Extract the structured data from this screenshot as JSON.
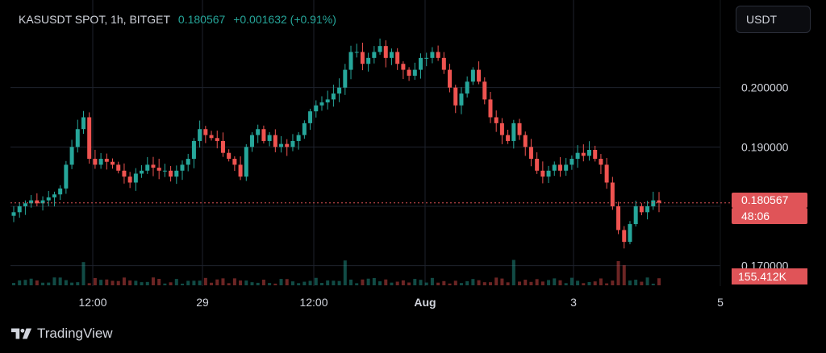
{
  "header": {
    "symbol": "KASUSDT SPOT, 1h, BITGET",
    "last_price": "0.180567",
    "change": "+0.001632 (+0.91%)"
  },
  "currency_button": "USDT",
  "price_tag": {
    "price": "0.180567",
    "countdown": "48:06"
  },
  "volume_tag": "155.412K",
  "footer": {
    "brand": "TradingView"
  },
  "colors": {
    "up": "#26a69a",
    "down": "#ef5350",
    "grid": "#1e222d",
    "last_line": "#e05458"
  },
  "chart_data": {
    "type": "candlestick",
    "y_axis": {
      "ticks": [
        0.17,
        0.18,
        0.19,
        0.2
      ],
      "tick_labels": [
        "0.170000",
        "0.180000",
        "0.190000",
        "0.200000"
      ],
      "range": [
        0.1675,
        0.2115
      ]
    },
    "x_axis": {
      "tick_labels": [
        "12:00",
        "29",
        "12:00",
        "Aug",
        "3",
        "5"
      ]
    },
    "last_price": 0.180567,
    "grid": true,
    "close_series": [
      0.179,
      0.18,
      0.1805,
      0.181,
      0.1805,
      0.181,
      0.1815,
      0.182,
      0.183,
      0.187,
      0.19,
      0.193,
      0.195,
      0.188,
      0.187,
      0.188,
      0.1875,
      0.187,
      0.186,
      0.185,
      0.184,
      0.1855,
      0.186,
      0.187,
      0.1865,
      0.186,
      0.186,
      0.185,
      0.186,
      0.187,
      0.188,
      0.191,
      0.193,
      0.192,
      0.1915,
      0.191,
      0.189,
      0.188,
      0.187,
      0.185,
      0.19,
      0.192,
      0.193,
      0.191,
      0.192,
      0.19,
      0.1905,
      0.19,
      0.191,
      0.192,
      0.194,
      0.196,
      0.197,
      0.1975,
      0.198,
      0.199,
      0.2,
      0.203,
      0.206,
      0.206,
      0.204,
      0.205,
      0.206,
      0.207,
      0.205,
      0.206,
      0.204,
      0.203,
      0.202,
      0.203,
      0.205,
      0.205,
      0.206,
      0.205,
      0.203,
      0.2,
      0.197,
      0.199,
      0.201,
      0.203,
      0.201,
      0.198,
      0.195,
      0.194,
      0.192,
      0.191,
      0.194,
      0.192,
      0.19,
      0.188,
      0.186,
      0.185,
      0.186,
      0.187,
      0.186,
      0.187,
      0.188,
      0.189,
      0.1885,
      0.1895,
      0.188,
      0.187,
      0.184,
      0.18,
      0.176,
      0.174,
      0.177,
      0.18,
      0.179,
      0.18,
      0.181,
      0.1806
    ],
    "volume_max_label": "155.412K"
  }
}
